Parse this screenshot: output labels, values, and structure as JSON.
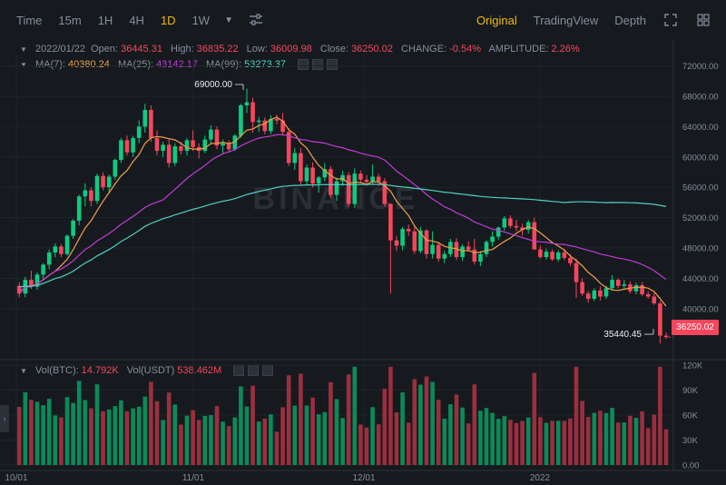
{
  "toolbar": {
    "timeframes": [
      "Time",
      "15m",
      "1H",
      "4H",
      "1D",
      "1W"
    ],
    "active_timeframe": "1D",
    "views": [
      "Original",
      "TradingView",
      "Depth"
    ],
    "active_view": "Original"
  },
  "ohlc": {
    "date": "2022/01/22",
    "open_label": "Open:",
    "open": "36445.31",
    "high_label": "High:",
    "high": "36835.22",
    "low_label": "Low:",
    "low": "36009.98",
    "close_label": "Close:",
    "close": "36250.02",
    "change_label": "CHANGE:",
    "change": "-0.54%",
    "amplitude_label": "AMPLITUDE:",
    "amplitude": "2.26%"
  },
  "ma": {
    "ma7_label": "MA(7):",
    "ma7": "40380.24",
    "ma25_label": "MA(25):",
    "ma25": "43142.17",
    "ma99_label": "MA(99):",
    "ma99": "53273.37"
  },
  "vol": {
    "btc_label": "Vol(BTC):",
    "btc": "14.792K",
    "usdt_label": "Vol(USDT)",
    "usdt": "538.462M"
  },
  "price_axis": [
    "72000.00",
    "68000.00",
    "64000.00",
    "60000.00",
    "56000.00",
    "52000.00",
    "48000.00",
    "44000.00",
    "40000.00"
  ],
  "volume_axis": [
    "120K",
    "90K",
    "60K",
    "30K",
    "0.00"
  ],
  "date_axis": [
    "10/01",
    "11/01",
    "12/01",
    "2022"
  ],
  "annotations": {
    "high_marker": "69000.00",
    "low_marker": "35440.45",
    "last_price": "36250.02"
  },
  "watermark": "BINANCE",
  "colors": {
    "up": "#0ecb81",
    "down": "#f6465d",
    "ma7": "#f0a04b",
    "ma25": "#c13bd8",
    "ma99": "#4fd1c5",
    "accent": "#f0b90b"
  },
  "chart_data": {
    "type": "candlestick",
    "symbol_interval": "1D",
    "x_start": "2021-09-20",
    "x_end": "2022-01-22",
    "ylim": [
      34000,
      73500
    ],
    "candles": [
      [
        43000,
        43500,
        41500,
        42000
      ],
      [
        42000,
        44200,
        41500,
        43800
      ],
      [
        43800,
        45000,
        42600,
        42900
      ],
      [
        42900,
        44800,
        42500,
        44500
      ],
      [
        44500,
        46000,
        43800,
        45800
      ],
      [
        45800,
        47800,
        45200,
        47400
      ],
      [
        47400,
        48600,
        46800,
        48200
      ],
      [
        48200,
        48500,
        46800,
        47200
      ],
      [
        47200,
        49800,
        47000,
        49600
      ],
      [
        49600,
        51800,
        49200,
        51600
      ],
      [
        51600,
        55000,
        51000,
        54800
      ],
      [
        54800,
        56500,
        53500,
        55600
      ],
      [
        55600,
        56000,
        53500,
        54200
      ],
      [
        54200,
        57800,
        53800,
        57500
      ],
      [
        57500,
        58000,
        55600,
        56000
      ],
      [
        56000,
        57700,
        55200,
        57400
      ],
      [
        57400,
        59800,
        57000,
        59600
      ],
      [
        59600,
        62500,
        59200,
        62200
      ],
      [
        62200,
        62800,
        60200,
        60600
      ],
      [
        60600,
        62800,
        60000,
        62500
      ],
      [
        62500,
        64800,
        61800,
        64000
      ],
      [
        64000,
        67000,
        63200,
        66200
      ],
      [
        66200,
        66800,
        62000,
        62500
      ],
      [
        62500,
        63500,
        60200,
        60800
      ],
      [
        60800,
        62000,
        60000,
        61600
      ],
      [
        61600,
        62400,
        58600,
        59200
      ],
      [
        59200,
        61800,
        58800,
        61400
      ],
      [
        61400,
        62000,
        60300,
        60800
      ],
      [
        60800,
        62500,
        60200,
        62200
      ],
      [
        62200,
        63500,
        60800,
        61300
      ],
      [
        61300,
        61800,
        59800,
        60800
      ],
      [
        60800,
        62800,
        60500,
        62300
      ],
      [
        62300,
        64200,
        61800,
        63600
      ],
      [
        63600,
        64000,
        61000,
        61500
      ],
      [
        61500,
        62300,
        60400,
        61800
      ],
      [
        61800,
        62200,
        60600,
        61000
      ],
      [
        61000,
        63000,
        60800,
        62800
      ],
      [
        62800,
        67000,
        62500,
        66800
      ],
      [
        66800,
        69000,
        65800,
        67200
      ],
      [
        67200,
        67800,
        63200,
        64600
      ],
      [
        64600,
        65300,
        63300,
        64800
      ],
      [
        64800,
        65200,
        63000,
        63400
      ],
      [
        63400,
        65500,
        63000,
        65000
      ],
      [
        65000,
        65600,
        64300,
        64800
      ],
      [
        64800,
        65800,
        62800,
        63300
      ],
      [
        63300,
        63800,
        58800,
        59200
      ],
      [
        59200,
        61200,
        58300,
        60500
      ],
      [
        60500,
        61200,
        56300,
        56800
      ],
      [
        56800,
        59000,
        56200,
        58600
      ],
      [
        58600,
        59300,
        56000,
        56500
      ],
      [
        56500,
        57500,
        55300,
        57300
      ],
      [
        57300,
        59200,
        56800,
        58400
      ],
      [
        58400,
        58800,
        54600,
        55000
      ],
      [
        55000,
        57300,
        54200,
        56800
      ],
      [
        56800,
        58200,
        56200,
        57600
      ],
      [
        57600,
        58000,
        53400,
        53800
      ],
      [
        53800,
        58500,
        53300,
        57800
      ],
      [
        57800,
        58200,
        56600,
        57000
      ],
      [
        57000,
        57600,
        56200,
        56700
      ],
      [
        56700,
        59000,
        56300,
        57400
      ],
      [
        57400,
        57800,
        56200,
        56800
      ],
      [
        56800,
        57200,
        53500,
        53800
      ],
      [
        53800,
        53900,
        42000,
        49000
      ],
      [
        49000,
        49600,
        47600,
        48300
      ],
      [
        48300,
        50800,
        47700,
        50500
      ],
      [
        50500,
        51100,
        49600,
        50200
      ],
      [
        50200,
        51000,
        47200,
        47600
      ],
      [
        47600,
        50800,
        47300,
        50300
      ],
      [
        50300,
        50500,
        46600,
        47200
      ],
      [
        47200,
        50200,
        46600,
        48400
      ],
      [
        48400,
        48800,
        46200,
        46600
      ],
      [
        46600,
        47600,
        46000,
        47200
      ],
      [
        47200,
        49200,
        46800,
        48800
      ],
      [
        48800,
        49300,
        46400,
        46800
      ],
      [
        46800,
        48500,
        46300,
        48200
      ],
      [
        48200,
        48900,
        47500,
        47800
      ],
      [
        47800,
        49200,
        45800,
        46200
      ],
      [
        46200,
        47600,
        45600,
        47200
      ],
      [
        47200,
        49000,
        46800,
        48800
      ],
      [
        48800,
        50200,
        48200,
        49500
      ],
      [
        49500,
        50800,
        49100,
        50700
      ],
      [
        50700,
        52200,
        50300,
        51900
      ],
      [
        51900,
        52300,
        50600,
        50900
      ],
      [
        50900,
        51700,
        50200,
        50700
      ],
      [
        50700,
        51200,
        49600,
        50400
      ],
      [
        50400,
        51700,
        49900,
        51400
      ],
      [
        51400,
        52000,
        47800,
        47800
      ],
      [
        47800,
        48300,
        46600,
        46800
      ],
      [
        46800,
        47900,
        46500,
        47500
      ],
      [
        47500,
        47800,
        46300,
        46500
      ],
      [
        46500,
        47700,
        46200,
        47400
      ],
      [
        47400,
        47900,
        46400,
        46700
      ],
      [
        46700,
        47200,
        45600,
        46000
      ],
      [
        46000,
        46600,
        41400,
        43500
      ],
      [
        43500,
        44000,
        41700,
        42000
      ],
      [
        42000,
        42300,
        40800,
        41300
      ],
      [
        41300,
        42700,
        41000,
        42400
      ],
      [
        42400,
        42900,
        41100,
        41600
      ],
      [
        41600,
        43000,
        41300,
        42700
      ],
      [
        42700,
        44400,
        42400,
        43800
      ],
      [
        43800,
        44000,
        42700,
        43000
      ],
      [
        43000,
        43800,
        42500,
        43200
      ],
      [
        43200,
        43600,
        42000,
        42300
      ],
      [
        42300,
        43400,
        41900,
        43100
      ],
      [
        43100,
        43500,
        41700,
        41900
      ],
      [
        41900,
        42300,
        41300,
        41600
      ],
      [
        41600,
        42100,
        40500,
        40700
      ],
      [
        40700,
        41000,
        35440,
        36445
      ],
      [
        36445,
        36835,
        36010,
        36250
      ]
    ]
  }
}
